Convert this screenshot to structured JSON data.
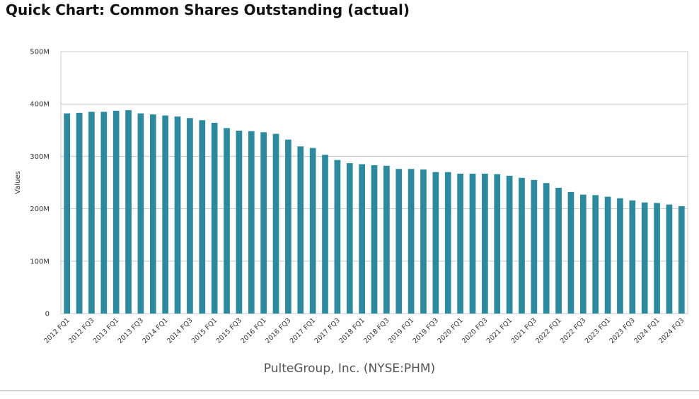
{
  "page": {
    "title": "Quick Chart: Common Shares Outstanding (actual)",
    "company": "PulteGroup, Inc. (NYSE:PHM)"
  },
  "chart_data": {
    "type": "bar",
    "title": "Quick Chart: Common Shares Outstanding (actual)",
    "xlabel": "PulteGroup, Inc. (NYSE:PHM)",
    "ylabel": "Values",
    "ylim": [
      0,
      500
    ],
    "unit": "M",
    "y_ticks": [
      0,
      100,
      200,
      300,
      400,
      500
    ],
    "y_tick_labels": [
      "0",
      "100M",
      "200M",
      "300M",
      "400M",
      "500M"
    ],
    "grid": true,
    "bar_color": "#2b8a9d",
    "categories": [
      "2012 FQ1",
      "2012 FQ2",
      "2012 FQ3",
      "2012 FQ4",
      "2013 FQ1",
      "2013 FQ2",
      "2013 FQ3",
      "2013 FQ4",
      "2014 FQ1",
      "2014 FQ2",
      "2014 FQ3",
      "2014 FQ4",
      "2015 FQ1",
      "2015 FQ2",
      "2015 FQ3",
      "2015 FQ4",
      "2016 FQ1",
      "2016 FQ2",
      "2016 FQ3",
      "2016 FQ4",
      "2017 FQ1",
      "2017 FQ2",
      "2017 FQ3",
      "2017 FQ4",
      "2018 FQ1",
      "2018 FQ2",
      "2018 FQ3",
      "2018 FQ4",
      "2019 FQ1",
      "2019 FQ2",
      "2019 FQ3",
      "2019 FQ4",
      "2020 FQ1",
      "2020 FQ2",
      "2020 FQ3",
      "2020 FQ4",
      "2021 FQ1",
      "2021 FQ2",
      "2021 FQ3",
      "2021 FQ4",
      "2022 FQ1",
      "2022 FQ2",
      "2022 FQ3",
      "2022 FQ4",
      "2023 FQ1",
      "2023 FQ2",
      "2023 FQ3",
      "2023 FQ4",
      "2024 FQ1",
      "2024 FQ2",
      "2024 FQ3"
    ],
    "shown_x_tick_labels": [
      "2012 FQ1",
      "2012 FQ3",
      "2013 FQ1",
      "2013 FQ3",
      "2014 FQ1",
      "2014 FQ3",
      "2015 FQ1",
      "2015 FQ3",
      "2016 FQ1",
      "2016 FQ3",
      "2017 FQ1",
      "2017 FQ3",
      "2018 FQ1",
      "2018 FQ3",
      "2019 FQ1",
      "2019 FQ3",
      "2020 FQ1",
      "2020 FQ3",
      "2021 FQ1",
      "2021 FQ3",
      "2022 FQ1",
      "2022 FQ3",
      "2023 FQ1",
      "2023 FQ3",
      "2024 FQ1",
      "2024 FQ3"
    ],
    "values": [
      382,
      383,
      385,
      385,
      387,
      388,
      382,
      380,
      378,
      376,
      373,
      369,
      364,
      354,
      349,
      348,
      346,
      343,
      332,
      319,
      316,
      303,
      293,
      287,
      285,
      283,
      282,
      276,
      276,
      275,
      270,
      270,
      267,
      267,
      267,
      266,
      263,
      259,
      255,
      249,
      240,
      232,
      227,
      226,
      223,
      220,
      216,
      212,
      211,
      208,
      205
    ]
  }
}
